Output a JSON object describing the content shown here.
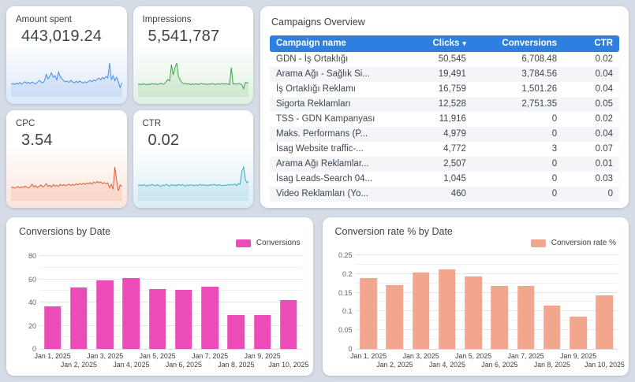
{
  "page": {
    "background": "#d6dce6"
  },
  "kpis": [
    {
      "id": "amount-spent",
      "label": "Amount spent",
      "value": "443,019.24",
      "color": "#4a8fe2",
      "tint": "#dbe7f8",
      "spark": [
        0.3,
        0.32,
        0.28,
        0.33,
        0.3,
        0.35,
        0.29,
        0.34,
        0.38,
        0.32,
        0.36,
        0.31,
        0.37,
        0.33,
        0.3,
        0.36,
        0.42,
        0.37,
        0.34,
        0.4,
        0.62,
        0.47,
        0.55,
        0.68,
        0.52,
        0.58,
        0.44,
        0.7,
        0.54,
        0.47,
        0.41,
        0.37,
        0.4,
        0.35,
        0.42,
        0.37,
        0.34,
        0.39,
        0.35,
        0.4,
        0.36,
        0.33,
        0.38,
        0.34,
        0.39,
        0.42,
        0.37,
        0.44,
        0.4,
        0.46,
        0.5,
        0.44,
        0.52,
        0.47,
        0.55,
        0.5,
        1.0,
        0.44,
        0.58,
        0.41,
        0.52,
        0.37,
        0.18,
        0.34
      ]
    },
    {
      "id": "impressions",
      "label": "Impressions",
      "value": "5,541,787",
      "color": "#43a24c",
      "tint": "#e0f0e2",
      "spark": [
        0.28,
        0.3,
        0.27,
        0.31,
        0.29,
        0.27,
        0.3,
        0.28,
        0.32,
        0.29,
        0.31,
        0.28,
        0.3,
        0.33,
        0.29,
        0.31,
        0.38,
        0.45,
        0.4,
        0.95,
        0.6,
        0.85,
        1.0,
        0.55,
        0.42,
        0.35,
        0.3,
        0.32,
        0.29,
        0.31,
        0.28,
        0.3,
        0.29,
        0.31,
        0.28,
        0.3,
        0.32,
        0.29,
        0.31,
        0.28,
        0.3,
        0.29,
        0.32,
        0.3,
        0.28,
        0.31,
        0.29,
        0.3,
        0.32,
        0.29,
        0.31,
        0.3,
        0.28,
        0.85,
        0.3,
        0.31,
        0.29,
        0.32,
        0.3,
        0.28,
        0.14,
        0.35,
        0.34,
        0.33
      ]
    },
    {
      "id": "cpc",
      "label": "CPC",
      "value": "3.54",
      "color": "#e85a35",
      "tint": "#fbe4da",
      "spark": [
        0.3,
        0.33,
        0.29,
        0.32,
        0.35,
        0.3,
        0.34,
        0.31,
        0.36,
        0.32,
        0.3,
        0.35,
        0.42,
        0.33,
        0.38,
        0.31,
        0.36,
        0.4,
        0.33,
        0.37,
        0.44,
        0.35,
        0.39,
        0.33,
        0.41,
        0.36,
        0.39,
        0.35,
        0.42,
        0.38,
        0.41,
        0.37,
        0.4,
        0.43,
        0.38,
        0.42,
        0.39,
        0.44,
        0.4,
        0.45,
        0.41,
        0.46,
        0.42,
        0.47,
        0.44,
        0.48,
        0.43,
        0.5,
        0.46,
        0.52,
        0.47,
        0.5,
        0.45,
        0.48,
        0.44,
        0.47,
        0.3,
        0.42,
        0.25,
        1.0,
        0.55,
        0.2,
        0.4,
        0.35
      ]
    },
    {
      "id": "ctr",
      "label": "CTR",
      "value": "0.02",
      "color": "#3ea9c9",
      "tint": "#d9edf4",
      "spark": [
        0.38,
        0.4,
        0.37,
        0.41,
        0.39,
        0.36,
        0.4,
        0.38,
        0.42,
        0.39,
        0.37,
        0.41,
        0.38,
        0.35,
        0.4,
        0.37,
        0.42,
        0.39,
        0.36,
        0.41,
        0.38,
        0.4,
        0.37,
        0.42,
        0.38,
        0.41,
        0.39,
        0.36,
        0.4,
        0.38,
        0.41,
        0.39,
        0.37,
        0.4,
        0.38,
        0.42,
        0.39,
        0.41,
        0.38,
        0.4,
        0.37,
        0.41,
        0.39,
        0.42,
        0.4,
        0.38,
        0.41,
        0.39,
        0.37,
        0.4,
        0.38,
        0.41,
        0.39,
        0.42,
        0.4,
        0.43,
        0.38,
        0.45,
        0.42,
        0.85,
        1.0,
        0.58,
        0.47,
        0.52
      ]
    }
  ],
  "table": {
    "title": "Campaigns Overview",
    "header_bg": "#2e80e0",
    "columns": [
      "Campaign name",
      "Clicks",
      "Conversions",
      "CTR"
    ],
    "sort_column": "Clicks",
    "sort_icon": "▾",
    "rows": [
      [
        "GDN - İş Ortaklığı",
        "50,545",
        "6,708.48",
        "0.02"
      ],
      [
        "Arama Ağı - Sağlık Si...",
        "19,491",
        "3,784.56",
        "0.04"
      ],
      [
        "İş Ortaklığı Reklamı",
        "16,759",
        "1,501.26",
        "0.04"
      ],
      [
        "Sigorta Reklamları",
        "12,528",
        "2,751.35",
        "0.05"
      ],
      [
        "TSS - GDN Kampanyası",
        "11,916",
        "0",
        "0.02"
      ],
      [
        "Maks. Performans (P...",
        "4,979",
        "0",
        "0.04"
      ],
      [
        "İsag Website traffic-...",
        "4,772",
        "3",
        "0.07"
      ],
      [
        "Arama Ağı Reklamlar...",
        "2,507",
        "0",
        "0.01"
      ],
      [
        "İsag Leads-Search 04...",
        "1,045",
        "0",
        "0.03"
      ],
      [
        "Video Reklamları (Yo...",
        "460",
        "0",
        "0"
      ]
    ],
    "partial_row": [
      "···",
      "···",
      "···",
      "···"
    ]
  },
  "chart_data": [
    {
      "type": "bar",
      "title": "Conversions by Date",
      "legend": "Conversions",
      "legend_position": "top-right",
      "color": "#eb4cb7",
      "grid": true,
      "categories": [
        "Jan 1, 2025",
        "Jan 2, 2025",
        "Jan 3, 2025",
        "Jan 4, 2025",
        "Jan 5, 2025",
        "Jan 6, 2025",
        "Jan 7, 2025",
        "Jan 8, 2025",
        "Jan 9, 2025",
        "Jan 10, 2025"
      ],
      "values": [
        37,
        53,
        59,
        61,
        52,
        51,
        54,
        29,
        29,
        42
      ],
      "xlabel": "",
      "ylabel": "",
      "ylim": [
        0,
        85
      ],
      "yticks": [
        {
          "v": 0,
          "label": "0"
        },
        {
          "v": 20,
          "label": "20"
        },
        {
          "v": 40,
          "label": "40"
        },
        {
          "v": 60,
          "label": "60"
        },
        {
          "v": 80,
          "label": "80"
        }
      ],
      "gridlines": [
        10,
        20,
        30,
        40,
        50,
        60,
        70,
        80
      ]
    },
    {
      "type": "bar",
      "title": "Conversion rate % by Date",
      "legend": "Conversion rate %",
      "legend_position": "top-right",
      "color": "#f2a68e",
      "grid": true,
      "categories": [
        "Jan 1, 2025",
        "Jan 2, 2025",
        "Jan 3, 2025",
        "Jan 4, 2025",
        "Jan 5, 2025",
        "Jan 6, 2025",
        "Jan 7, 2025",
        "Jan 8, 2025",
        "Jan 9, 2025",
        "Jan 10, 2025"
      ],
      "values": [
        0.19,
        0.17,
        0.203,
        0.213,
        0.193,
        0.167,
        0.167,
        0.116,
        0.087,
        0.143
      ],
      "xlabel": "",
      "ylabel": "",
      "ylim": [
        0,
        0.2625
      ],
      "yticks": [
        {
          "v": 0,
          "label": "0"
        },
        {
          "v": 0.05,
          "label": "0.05"
        },
        {
          "v": 0.1,
          "label": "0.1"
        },
        {
          "v": 0.15,
          "label": "0.15"
        },
        {
          "v": 0.2,
          "label": "0.2"
        },
        {
          "v": 0.25,
          "label": "0.25"
        }
      ],
      "gridlines": [
        0.025,
        0.05,
        0.075,
        0.1,
        0.125,
        0.15,
        0.175,
        0.2,
        0.225,
        0.25
      ]
    }
  ]
}
